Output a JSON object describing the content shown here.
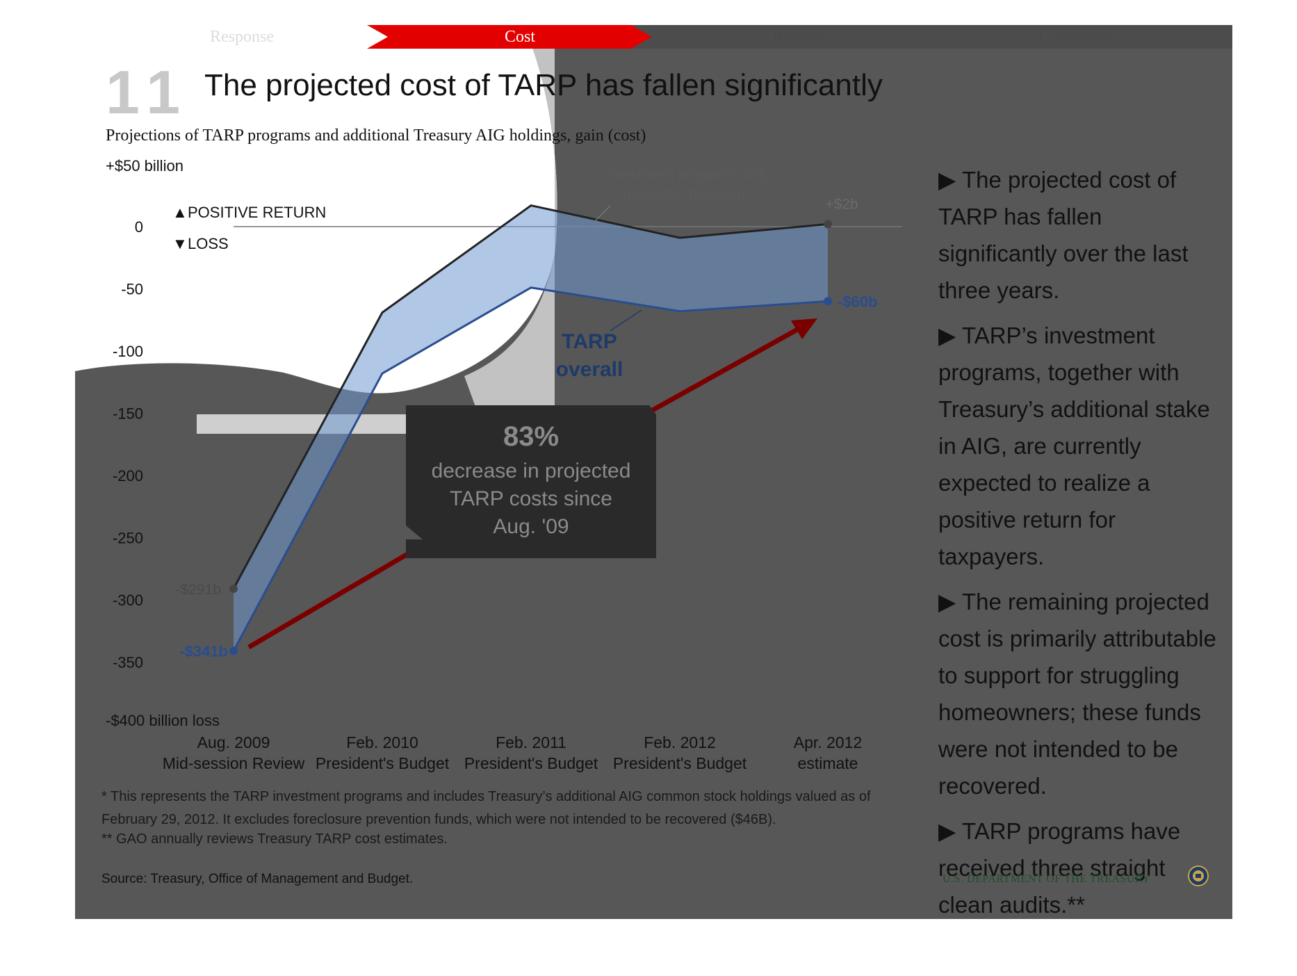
{
  "nav": {
    "items": [
      {
        "label": "Response",
        "active": false
      },
      {
        "label": "Cost",
        "active": true
      },
      {
        "label": "Reform",
        "active": false
      },
      {
        "label": "Challenges",
        "active": false
      }
    ],
    "active_color": "#e20000"
  },
  "slide": {
    "number": "11",
    "title": "The projected cost of TARP has fallen significantly"
  },
  "chart_data": {
    "type": "line",
    "title": "The projected cost of TARP has fallen significantly",
    "subtitle": "Projections of TARP programs and additional Treasury AIG holdings, gain (cost)",
    "ylabel_top": "+$50 billion",
    "ylabel_bottom": "-$400 billion loss",
    "positive_label": "POSITIVE RETURN",
    "negative_label": "LOSS",
    "ylim": [
      -400,
      50
    ],
    "yticks": [
      "0",
      "-50",
      "-100",
      "-150",
      "-200",
      "-250",
      "-300",
      "-350"
    ],
    "categories": [
      {
        "line1": "Aug. 2009",
        "line2": "Mid-session Review"
      },
      {
        "line1": "Feb. 2010",
        "line2": "President's Budget"
      },
      {
        "line1": "Feb. 2011",
        "line2": "President's Budget"
      },
      {
        "line1": "Feb. 2012",
        "line2": "President's Budget"
      },
      {
        "line1": "Apr. 2012",
        "line2": "estimate"
      }
    ],
    "series": [
      {
        "name": "Investment programs only (excludes housing)*",
        "color": "#222222",
        "values": [
          -291,
          -69,
          17,
          -9,
          2
        ]
      },
      {
        "name": "TARP overall",
        "color": "#2a4d8f",
        "values": [
          -341,
          -118,
          -49,
          -68,
          -60
        ]
      }
    ],
    "series_labels": {
      "investment_line1": "Investment programs only",
      "investment_line2": "(excludes housing)*",
      "tarp_line1": "TARP",
      "tarp_line2": "overall"
    },
    "data_labels": {
      "investment_start": "-$291b",
      "investment_end": "+$2b",
      "tarp_start": "-$341b",
      "tarp_end": "-$60b"
    },
    "callout": {
      "value": "83%",
      "text_line1": "decrease in projected",
      "text_line2": "TARP costs since",
      "text_line3": "Aug. '09"
    },
    "grid": false,
    "legend": "none"
  },
  "bullets": [
    "The projected cost of TARP has fallen significantly over the last three years.",
    "TARP’s investment programs, together with Treasury’s additional stake in AIG,  are currently expected to realize a positive return for taxpayers.",
    "The remaining projected cost is primarily attributable to support for struggling homeowners; these funds were not intended to be recovered.",
    "TARP programs have received three straight clean audits.**"
  ],
  "bullet_marker": "▶",
  "footnotes": {
    "note1": "* This represents the TARP investment programs and includes Treasury’s additional AIG common stock holdings valued as of February 29, 2012. It excludes foreclosure prevention funds, which were not intended to be recovered ($46B).",
    "note2": "** GAO annually reviews Treasury TARP cost estimates.",
    "source": "Source: Treasury, Office of Management and Budget."
  },
  "branding": {
    "label": "U.S. DEPARTMENT OF THE TREASURY",
    "icon": "treasury-seal-icon"
  }
}
